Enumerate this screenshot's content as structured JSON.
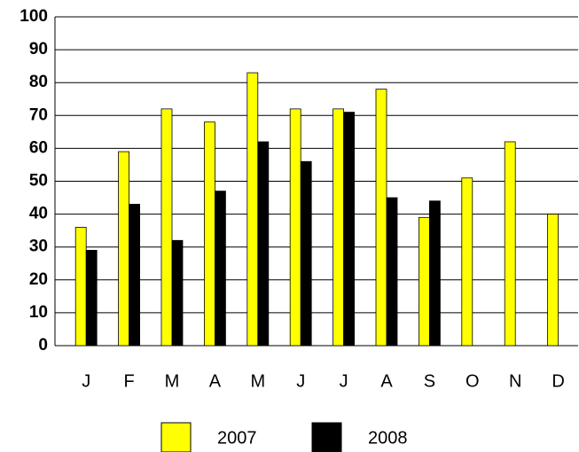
{
  "chart_data": {
    "type": "bar",
    "categories": [
      "J",
      "F",
      "M",
      "A",
      "M",
      "J",
      "J",
      "A",
      "S",
      "O",
      "N",
      "D"
    ],
    "series": [
      {
        "name": "2007",
        "color": "#ffff00",
        "values": [
          36,
          59,
          72,
          68,
          83,
          72,
          72,
          78,
          39,
          51,
          62,
          40
        ]
      },
      {
        "name": "2008",
        "color": "#000000",
        "values": [
          29,
          43,
          32,
          47,
          62,
          56,
          71,
          45,
          44,
          null,
          null,
          null
        ]
      }
    ],
    "ylim": [
      0,
      100
    ],
    "yticks": [
      0,
      10,
      20,
      30,
      40,
      50,
      60,
      70,
      80,
      90,
      100
    ],
    "grid": true,
    "legend": "bottom"
  }
}
